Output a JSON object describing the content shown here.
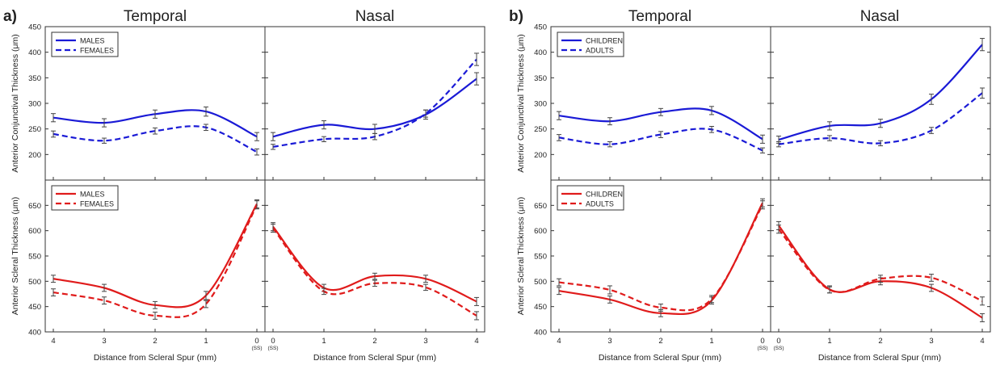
{
  "figure": {
    "panels": [
      {
        "label": "a)",
        "temporal_title": "Temporal",
        "nasal_title": "Nasal",
        "xlabel": "Distance from Scleral Spur (mm)"
      },
      {
        "label": "b)",
        "temporal_title": "Temporal",
        "nasal_title": "Nasal",
        "xlabel": "Distance from Scleral Spur (mm)"
      }
    ],
    "ss_label": "(SS)",
    "colors": {
      "conjunctival": "#1a1ad6",
      "scleral": "#e01b1b"
    }
  },
  "chart_data": [
    {
      "type": "line",
      "panel": "a",
      "row": "top",
      "ylabel": "Anterior Conjunctival Thickness (μm)",
      "ylim": [
        150,
        450
      ],
      "yticks": [
        200,
        250,
        300,
        350,
        400,
        450
      ],
      "legend": "top-left",
      "color": "#1a1ad6",
      "temporal_x": [
        4,
        3,
        2,
        1,
        0
      ],
      "nasal_x": [
        0,
        1,
        2,
        3,
        4
      ],
      "series": [
        {
          "name": "MALES",
          "style": "solid",
          "temporal": [
            272,
            262,
            279,
            284,
            235
          ],
          "temporal_err": [
            8,
            8,
            8,
            9,
            8
          ],
          "nasal": [
            235,
            258,
            250,
            278,
            348
          ],
          "nasal_err": [
            8,
            8,
            9,
            9,
            12
          ]
        },
        {
          "name": "FEMALES",
          "style": "dashed",
          "temporal": [
            240,
            227,
            246,
            253,
            205
          ],
          "temporal_err": [
            6,
            5,
            6,
            6,
            6
          ],
          "nasal": [
            215,
            230,
            235,
            280,
            386
          ],
          "nasal_err": [
            5,
            5,
            6,
            7,
            12
          ]
        }
      ]
    },
    {
      "type": "line",
      "panel": "a",
      "row": "bottom",
      "ylabel": "Anterior Scleral Thickness (μm)",
      "ylim": [
        400,
        700
      ],
      "yticks": [
        400,
        450,
        500,
        550,
        600,
        650
      ],
      "legend": "top-left",
      "color": "#e01b1b",
      "temporal_x": [
        4,
        3,
        2,
        1,
        0
      ],
      "nasal_x": [
        0,
        1,
        2,
        3,
        4
      ],
      "series": [
        {
          "name": "MALES",
          "style": "solid",
          "temporal": [
            505,
            487,
            453,
            472,
            653
          ],
          "temporal_err": [
            7,
            7,
            7,
            8,
            8
          ],
          "nasal": [
            608,
            487,
            510,
            505,
            460
          ],
          "nasal_err": [
            8,
            7,
            6,
            7,
            8
          ]
        },
        {
          "name": "FEMALES",
          "style": "dashed",
          "temporal": [
            478,
            462,
            432,
            455,
            651
          ],
          "temporal_err": [
            7,
            7,
            7,
            7,
            8
          ],
          "nasal": [
            605,
            480,
            496,
            488,
            432
          ],
          "nasal_err": [
            8,
            6,
            6,
            6,
            8
          ]
        }
      ]
    },
    {
      "type": "line",
      "panel": "b",
      "row": "top",
      "ylabel": "Anterior Conjunctival Thickness (μm)",
      "ylim": [
        150,
        450
      ],
      "yticks": [
        200,
        250,
        300,
        350,
        400,
        450
      ],
      "legend": "top-left",
      "color": "#1a1ad6",
      "temporal_x": [
        4,
        3,
        2,
        1,
        0
      ],
      "nasal_x": [
        0,
        1,
        2,
        3,
        4
      ],
      "series": [
        {
          "name": "CHILDREN",
          "style": "solid",
          "temporal": [
            276,
            265,
            283,
            286,
            230
          ],
          "temporal_err": [
            8,
            7,
            7,
            8,
            8
          ],
          "nasal": [
            229,
            256,
            261,
            308,
            415
          ],
          "nasal_err": [
            7,
            8,
            8,
            10,
            12
          ]
        },
        {
          "name": "ADULTS",
          "style": "dashed",
          "temporal": [
            233,
            220,
            239,
            249,
            208
          ],
          "temporal_err": [
            6,
            5,
            6,
            6,
            5
          ],
          "nasal": [
            220,
            232,
            222,
            247,
            320
          ],
          "nasal_err": [
            5,
            5,
            5,
            6,
            10
          ]
        }
      ]
    },
    {
      "type": "line",
      "panel": "b",
      "row": "bottom",
      "ylabel": "Anterior Scleral Thickness (μm)",
      "ylim": [
        400,
        700
      ],
      "yticks": [
        400,
        450,
        500,
        550,
        600,
        650
      ],
      "legend": "top-left",
      "color": "#e01b1b",
      "temporal_x": [
        4,
        3,
        2,
        1,
        0
      ],
      "nasal_x": [
        0,
        1,
        2,
        3,
        4
      ],
      "series": [
        {
          "name": "CHILDREN",
          "style": "solid",
          "temporal": [
            481,
            464,
            437,
            462,
            655
          ],
          "temporal_err": [
            7,
            7,
            7,
            7,
            8
          ],
          "nasal": [
            610,
            484,
            500,
            487,
            428
          ],
          "nasal_err": [
            8,
            7,
            7,
            7,
            8
          ]
        },
        {
          "name": "ADULTS",
          "style": "dashed",
          "temporal": [
            498,
            483,
            448,
            465,
            651
          ],
          "temporal_err": [
            7,
            8,
            7,
            7,
            8
          ],
          "nasal": [
            603,
            483,
            505,
            507,
            461
          ],
          "nasal_err": [
            8,
            6,
            7,
            7,
            8
          ]
        }
      ]
    }
  ]
}
